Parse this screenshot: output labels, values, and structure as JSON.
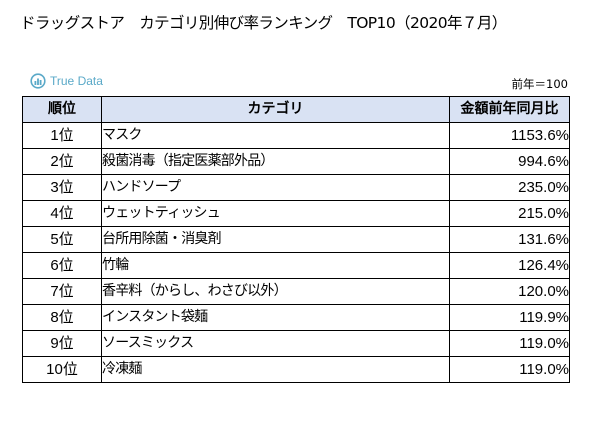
{
  "title": "ドラッグストア　カテゴリ別伸び率ランキング　TOP10（2020年７月）",
  "logo": {
    "icon": "true-data-logo-icon",
    "text": "True Data",
    "color": "#5aa9c8"
  },
  "base_note": "前年＝100",
  "table": {
    "header_bg": "#d9e2f3",
    "columns": [
      "順位",
      "カテゴリ",
      "金額前年同月比"
    ],
    "rows": [
      {
        "rank": "1位",
        "category": "マスク",
        "value": "1153.6%"
      },
      {
        "rank": "2位",
        "category": "殺菌消毒（指定医薬部外品）",
        "value": "994.6%"
      },
      {
        "rank": "3位",
        "category": "ハンドソープ",
        "value": "235.0%"
      },
      {
        "rank": "4位",
        "category": "ウェットティッシュ",
        "value": "215.0%"
      },
      {
        "rank": "5位",
        "category": "台所用除菌・消臭剤",
        "value": "131.6%"
      },
      {
        "rank": "6位",
        "category": "竹輪",
        "value": "126.4%"
      },
      {
        "rank": "7位",
        "category": "香辛料（からし、わさび以外）",
        "value": "120.0%"
      },
      {
        "rank": "8位",
        "category": "インスタント袋麺",
        "value": "119.9%"
      },
      {
        "rank": "9位",
        "category": "ソースミックス",
        "value": "119.0%"
      },
      {
        "rank": "10位",
        "category": "冷凍麺",
        "value": "119.0%"
      }
    ]
  }
}
